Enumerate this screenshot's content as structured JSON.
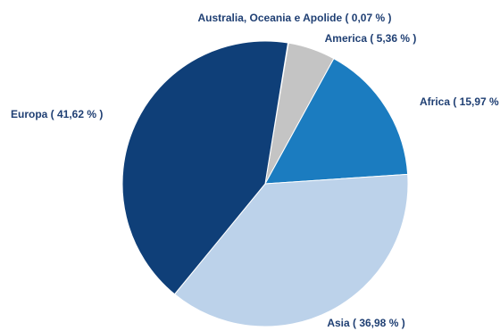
{
  "chart_data": {
    "type": "pie",
    "title": "",
    "slices": [
      {
        "label": "Australia, Oceania e Apolide",
        "value": 0.07,
        "label_text": "Australia, Oceania e Apolide  ( 0,07 % )",
        "color": "#c8c8c8"
      },
      {
        "label": "America",
        "value": 5.36,
        "label_text": "America  ( 5,36 % )",
        "color": "#c4c4c4"
      },
      {
        "label": "Africa",
        "value": 15.97,
        "label_text": "Africa  ( 15,97 % )",
        "color": "#1b7cc0"
      },
      {
        "label": "Asia",
        "value": 36.98,
        "label_text": "Asia  ( 36,98 % )",
        "color": "#bcd2ea"
      },
      {
        "label": "Europa",
        "value": 41.62,
        "label_text": "Europa  ( 41,62 % )",
        "color": "#0f3f78"
      }
    ],
    "start": "top, clockwise"
  }
}
